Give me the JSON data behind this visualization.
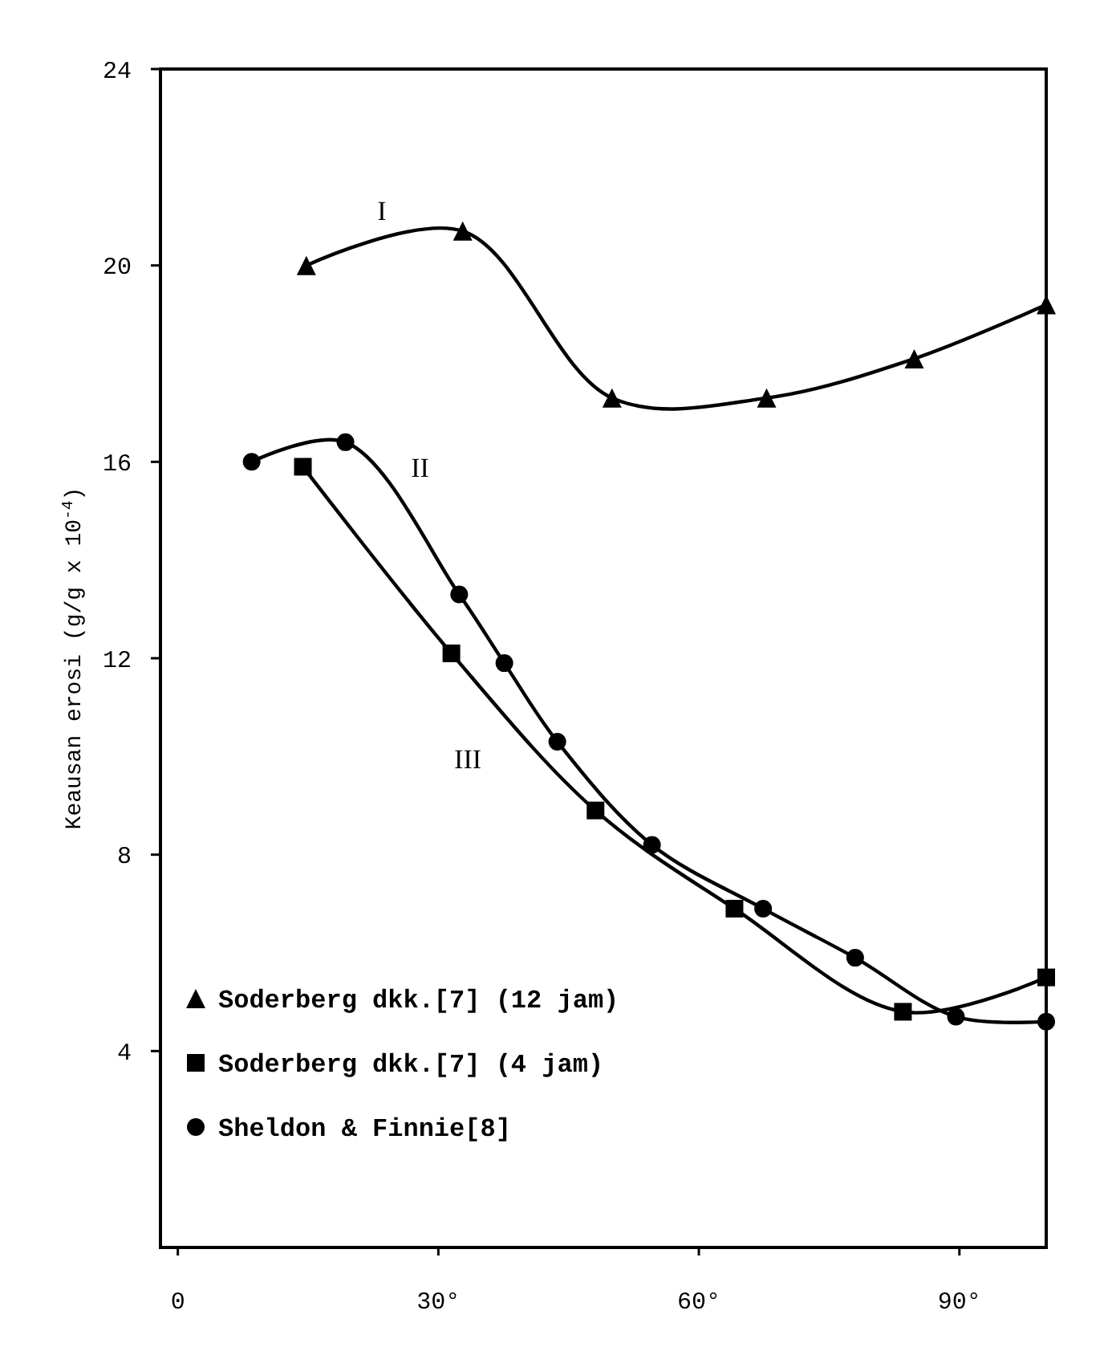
{
  "chart_data": {
    "type": "line",
    "ylabel": "Keausan erosi (g/g x 10$^{-4}$)",
    "xlim": [
      -2,
      100
    ],
    "xticks": [
      0,
      {
        "value": 30,
        "label": "30°"
      },
      {
        "value": 60,
        "label": "60°"
      },
      {
        "value": 90,
        "label": "90°"
      }
    ],
    "ylim": [
      0,
      24
    ],
    "yticks": [
      4,
      8,
      12,
      16,
      20,
      24
    ],
    "grid": false,
    "legend": "bottom left",
    "line_style": "solid",
    "annotations": [
      "I",
      "II",
      "III"
    ],
    "series": [
      {
        "name": "Soderberg dkk.[7] (12 jam)",
        "color": "#000000",
        "marker": "triangle",
        "x": [
          14.8,
          32.8,
          50,
          67.8,
          84.8,
          100
        ],
        "values": [
          20.0,
          20.7,
          17.3,
          17.3,
          18.1,
          19.2
        ]
      },
      {
        "name": "Soderberg dkk.[7] (4 jam)",
        "color": "#000000",
        "marker": "square",
        "x": [
          14.4,
          31.5,
          48.1,
          64.1,
          83.5,
          100
        ],
        "values": [
          15.9,
          12.1,
          8.9,
          6.9,
          4.8,
          5.5
        ]
      },
      {
        "name": "Sheldon & Finnie[8]",
        "color": "#000000",
        "marker": "circle",
        "x": [
          8.5,
          19.3,
          32.4,
          37.6,
          43.7,
          54.6,
          67.4,
          78,
          89.6,
          100
        ],
        "values": [
          16.0,
          16.4,
          13.3,
          11.9,
          10.3,
          8.2,
          6.9,
          5.9,
          4.7,
          4.6
        ]
      }
    ]
  }
}
